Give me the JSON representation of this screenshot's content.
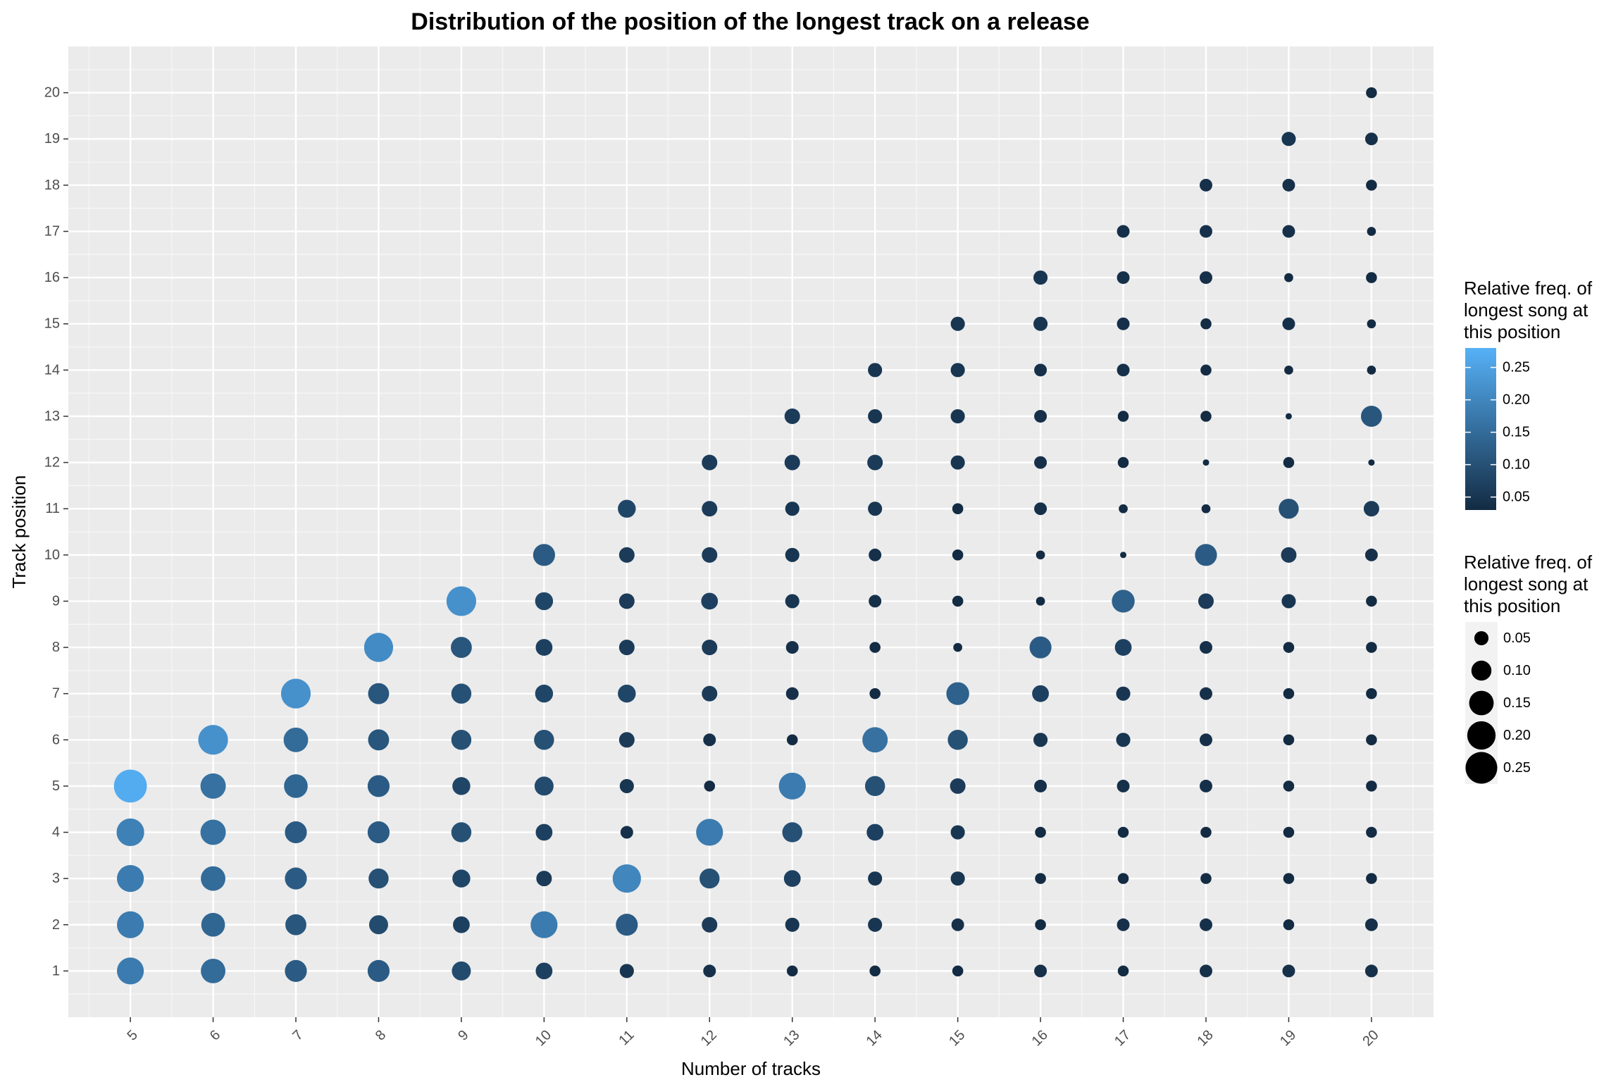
{
  "chart_data": {
    "type": "scatter",
    "title": "Distribution of the position of the longest track on a release",
    "xlabel": "Number of tracks",
    "ylabel": "Track position",
    "x_ticks": [
      5,
      6,
      7,
      8,
      9,
      10,
      11,
      12,
      13,
      14,
      15,
      16,
      17,
      18,
      19,
      20
    ],
    "y_ticks": [
      1,
      2,
      3,
      4,
      5,
      6,
      7,
      8,
      9,
      10,
      11,
      12,
      13,
      14,
      15,
      16,
      17,
      18,
      19,
      20
    ],
    "xlim": [
      4.25,
      20.75
    ],
    "ylim": [
      0,
      21
    ],
    "grid": true,
    "background": "#ebebeb",
    "color_low": "#132b43",
    "color_high": "#56b1f7",
    "legend_color": {
      "title": "Relative freq. of\nlongest song at\nthis position",
      "labels": [
        0.05,
        0.1,
        0.15,
        0.2,
        0.25
      ],
      "label_text": [
        "0.05",
        "0.10",
        "0.15",
        "0.20",
        "0.25"
      ],
      "range": [
        0.03,
        0.28
      ]
    },
    "legend_size": {
      "title": "Relative freq. of\nlongest song at\nthis position",
      "labels": [
        0.05,
        0.1,
        0.15,
        0.2,
        0.25
      ],
      "label_text": [
        "0.05",
        "0.10",
        "0.15",
        "0.20",
        "0.25"
      ]
    },
    "legend_position": "right",
    "series": [
      {
        "x": 5,
        "y": [
          0.18,
          0.18,
          0.18,
          0.19,
          0.27
        ]
      },
      {
        "x": 6,
        "y": [
          0.15,
          0.14,
          0.15,
          0.16,
          0.16,
          0.22
        ]
      },
      {
        "x": 7,
        "y": [
          0.12,
          0.11,
          0.12,
          0.12,
          0.14,
          0.15,
          0.22
        ]
      },
      {
        "x": 8,
        "y": [
          0.12,
          0.09,
          0.1,
          0.12,
          0.12,
          0.11,
          0.11,
          0.21
        ]
      },
      {
        "x": 9,
        "y": [
          0.09,
          0.07,
          0.08,
          0.1,
          0.08,
          0.1,
          0.1,
          0.11,
          0.22
        ]
      },
      {
        "x": 10,
        "y": [
          0.07,
          0.18,
          0.06,
          0.07,
          0.09,
          0.1,
          0.08,
          0.07,
          0.08,
          0.12
        ]
      },
      {
        "x": 11,
        "y": [
          0.05,
          0.12,
          0.2,
          0.04,
          0.05,
          0.06,
          0.08,
          0.06,
          0.06,
          0.06,
          0.08
        ]
      },
      {
        "x": 12,
        "y": [
          0.04,
          0.06,
          0.1,
          0.18,
          0.03,
          0.04,
          0.06,
          0.06,
          0.07,
          0.06,
          0.06,
          0.06
        ]
      },
      {
        "x": 13,
        "y": [
          0.03,
          0.05,
          0.07,
          0.1,
          0.18,
          0.03,
          0.04,
          0.04,
          0.05,
          0.05,
          0.05,
          0.06,
          0.06
        ]
      },
      {
        "x": 14,
        "y": [
          0.03,
          0.05,
          0.05,
          0.07,
          0.1,
          0.16,
          0.03,
          0.03,
          0.04,
          0.04,
          0.05,
          0.06,
          0.05,
          0.05
        ]
      },
      {
        "x": 15,
        "y": [
          0.03,
          0.04,
          0.05,
          0.05,
          0.06,
          0.1,
          0.13,
          0.02,
          0.03,
          0.03,
          0.03,
          0.05,
          0.05,
          0.05,
          0.05
        ]
      },
      {
        "x": 16,
        "y": [
          0.04,
          0.03,
          0.03,
          0.03,
          0.04,
          0.05,
          0.07,
          0.12,
          0.02,
          0.02,
          0.04,
          0.04,
          0.04,
          0.04,
          0.05,
          0.05
        ]
      },
      {
        "x": 17,
        "y": [
          0.03,
          0.04,
          0.03,
          0.03,
          0.04,
          0.05,
          0.05,
          0.07,
          0.13,
          0.01,
          0.02,
          0.03,
          0.03,
          0.04,
          0.04,
          0.04,
          0.04
        ]
      },
      {
        "x": 18,
        "y": [
          0.04,
          0.04,
          0.03,
          0.03,
          0.04,
          0.04,
          0.04,
          0.04,
          0.06,
          0.12,
          0.02,
          0.01,
          0.03,
          0.03,
          0.03,
          0.04,
          0.04,
          0.04
        ]
      },
      {
        "x": 19,
        "y": [
          0.04,
          0.03,
          0.03,
          0.03,
          0.03,
          0.03,
          0.03,
          0.03,
          0.05,
          0.06,
          0.1,
          0.03,
          0.01,
          0.02,
          0.04,
          0.02,
          0.04,
          0.04,
          0.05
        ]
      },
      {
        "x": 20,
        "y": [
          0.04,
          0.04,
          0.03,
          0.03,
          0.03,
          0.03,
          0.03,
          0.03,
          0.03,
          0.04,
          0.06,
          0.01,
          0.11,
          0.02,
          0.02,
          0.03,
          0.02,
          0.03,
          0.04,
          0.03
        ]
      }
    ]
  }
}
